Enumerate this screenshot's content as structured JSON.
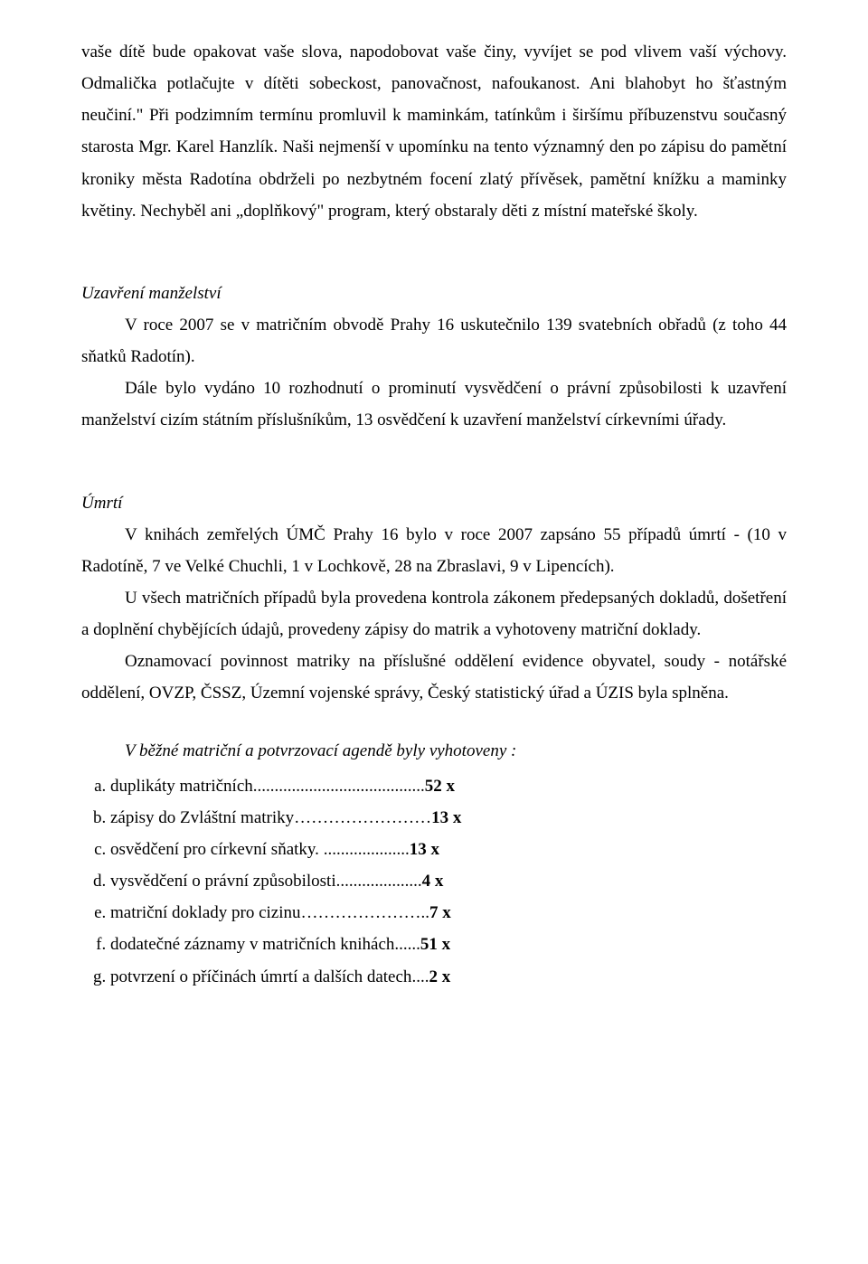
{
  "para1": "vaše dítě bude opakovat vaše slova, napodobovat vaše činy, vyvíjet se pod vlivem vaší výchovy. Odmalička potlačujte v dítěti sobeckost, panovačnost, nafoukanost. Ani blahobyt ho šťastným neučiní.\" Při podzimním termínu promluvil k maminkám, tatínkům i širšímu příbuzenstvu současný starosta Mgr. Karel Hanzlík. Naši nejmenší v upomínku na tento významný den po zápisu do pamětní kroniky města Radotína obdrželi po nezbytném focení zlatý přívěsek, pamětní knížku a maminky květiny. Nechyběl ani „doplňkový\" program, který obstaraly děti z místní mateřské školy.",
  "marriage": {
    "heading": "Uzavření manželství",
    "p1": "V roce 2007 se v matričním obvodě Prahy 16 uskutečnilo 139 svatebních obřadů (z toho 44 sňatků Radotín).",
    "p2": "Dále bylo vydáno 10 rozhodnutí o prominutí vysvědčení o právní způsobilosti k uzavření manželství cizím státním příslušníkům, 13 osvědčení k uzavření manželství církevními úřady."
  },
  "death": {
    "heading": "Úmrtí",
    "p1": "V knihách zemřelých ÚMČ Prahy 16 bylo v roce 2007 zapsáno 55 případů úmrtí - (10 v Radotíně, 7 ve Velké Chuchli, 1 v Lochkově, 28 na Zbraslavi, 9 v Lipencích).",
    "p2": "U všech matričních případů byla provedena kontrola zákonem předepsaných dokladů, došetření a doplnění chybějících údajů, provedeny zápisy do matrik a vyhotoveny matriční doklady.",
    "p3": "Oznamovací povinnost matriky na příslušné oddělení evidence obyvatel, soudy - notářské oddělení, OVZP, ČSSZ, Územní vojenské správy, Český statistický úřad a ÚZIS byla splněna."
  },
  "agenda": {
    "heading": "V běžné matriční a potvrzovací agendě byly vyhotoveny :",
    "items": [
      {
        "label": "duplikáty matričních",
        "fill": "........................................",
        "count": "52 x"
      },
      {
        "label": "zápisy do Zvláštní matriky",
        "fill": "……………………",
        "count": "13 x"
      },
      {
        "label": "osvědčení pro církevní sňatky.",
        "fill": " ....................",
        "count": "13 x"
      },
      {
        "label": "vysvědčení o právní způsobilosti",
        "fill": "....................",
        "count": "4 x"
      },
      {
        "label": "matriční doklady pro cizinu",
        "fill": "…………………..",
        "count": "7 x"
      },
      {
        "label": "dodatečné záznamy v matričních knihách",
        "fill": "......",
        "count": "51 x"
      },
      {
        "label": "potvrzení o příčinách úmrtí a dalších datech",
        "fill": "....",
        "count": "2 x"
      }
    ]
  }
}
